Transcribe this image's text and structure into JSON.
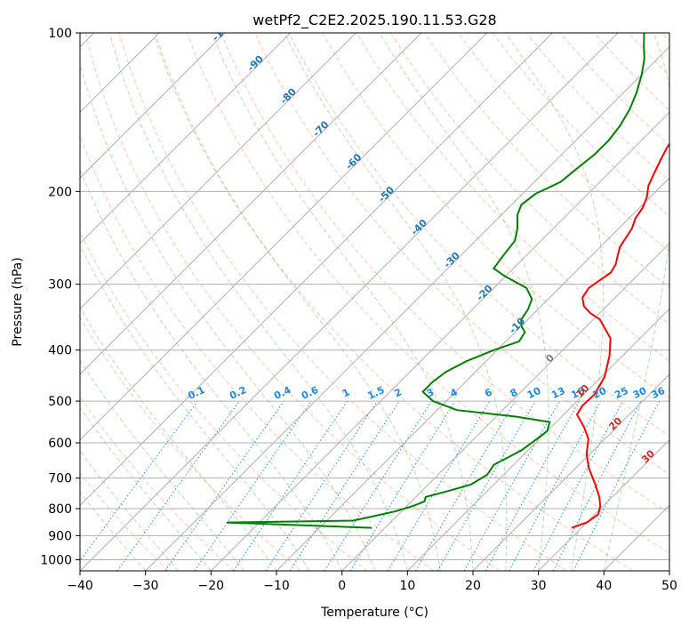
{
  "chart_data": {
    "type": "line",
    "title": "wetPf2_C2E2.2025.190.11.53.G28",
    "xlabel": "Temperature (°C)",
    "ylabel": "Pressure (hPa)",
    "xlim": [
      -40,
      50
    ],
    "ylim": [
      1050,
      100
    ],
    "y_scale": "log",
    "grid": true,
    "x_ticks": [
      "−40",
      "−30",
      "−20",
      "−10",
      "0",
      "10",
      "20",
      "30",
      "40",
      "50"
    ],
    "y_ticks": [
      {
        "p": 1000,
        "label": "1000"
      },
      {
        "p": 900,
        "label": "900"
      },
      {
        "p": 800,
        "label": "800"
      },
      {
        "p": 700,
        "label": "700"
      },
      {
        "p": 600,
        "label": "600"
      },
      {
        "p": 500,
        "label": "500"
      },
      {
        "p": 400,
        "label": "400"
      },
      {
        "p": 300,
        "label": "300"
      },
      {
        "p": 200,
        "label": "200"
      },
      {
        "p": 100,
        "label": "100"
      }
    ],
    "isotherm_labels": [
      "-100",
      "-90",
      "-80",
      "-70",
      "-60",
      "-50",
      "-40",
      "-30",
      "-20",
      "-10",
      "0",
      "10",
      "20",
      "30",
      "40"
    ],
    "mixing_ratio_labels": [
      "0.1",
      "0.2",
      "0.4",
      "0.6",
      "1",
      "1.5",
      "2",
      "3",
      "4",
      "6",
      "8",
      "10",
      "13",
      "16",
      "20",
      "25",
      "30",
      "36"
    ],
    "colors": {
      "temperature": "#ff0000",
      "dewpoint": "#008000",
      "isotherm_label_cold": "#1f77b4",
      "isotherm_label_warm": "#d62728",
      "isotherm_label_zero": "#7f7f7f",
      "mixing_ratio": "#1e88e5",
      "dry_adiabat": "#ff7f50",
      "moist_adiabat": "#2ca02c",
      "grid": "#b0b0b0"
    },
    "series": [
      {
        "name": "Temperature",
        "points": [
          [
            28.5,
            870
          ],
          [
            30.0,
            850
          ],
          [
            30.5,
            820
          ],
          [
            29.5,
            790
          ],
          [
            28.0,
            760
          ],
          [
            25.5,
            720
          ],
          [
            22.0,
            670
          ],
          [
            19.5,
            630
          ],
          [
            17.5,
            590
          ],
          [
            15.0,
            560
          ],
          [
            12.0,
            530
          ],
          [
            11.5,
            510
          ],
          [
            11.6,
            485
          ],
          [
            10.5,
            450
          ],
          [
            8.0,
            410
          ],
          [
            5.5,
            380
          ],
          [
            1.0,
            350
          ],
          [
            -1.5,
            340
          ],
          [
            -3.5,
            330
          ],
          [
            -5.0,
            318
          ],
          [
            -5.5,
            305
          ],
          [
            -5.0,
            295
          ],
          [
            -4.5,
            285
          ],
          [
            -5.0,
            275
          ],
          [
            -6.0,
            265
          ],
          [
            -7.0,
            255
          ],
          [
            -7.5,
            245
          ],
          [
            -8.0,
            235
          ],
          [
            -9.0,
            225
          ],
          [
            -9.5,
            215
          ],
          [
            -10.5,
            205
          ],
          [
            -12.0,
            195
          ],
          [
            -13.0,
            185
          ],
          [
            -14.0,
            175
          ],
          [
            -15.0,
            165
          ],
          [
            -15.5,
            155
          ],
          [
            -16.5,
            145
          ],
          [
            -18.0,
            135
          ],
          [
            -20.0,
            127
          ],
          [
            -22.0,
            120
          ],
          [
            -24.0,
            113
          ],
          [
            -26.0,
            107
          ],
          [
            -28.0,
            100
          ]
        ]
      },
      {
        "name": "Dewpoint",
        "points": [
          [
            -2.0,
            870
          ],
          [
            -25.0,
            850
          ],
          [
            -6.0,
            843
          ],
          [
            -4.0,
            830
          ],
          [
            -1.0,
            810
          ],
          [
            1.0,
            790
          ],
          [
            2.0,
            775
          ],
          [
            1.5,
            760
          ],
          [
            3.5,
            745
          ],
          [
            6.5,
            720
          ],
          [
            7.5,
            690
          ],
          [
            7.0,
            660
          ],
          [
            8.0,
            640
          ],
          [
            9.0,
            620
          ],
          [
            9.5,
            595
          ],
          [
            10.0,
            570
          ],
          [
            9.0,
            548
          ],
          [
            3.0,
            535
          ],
          [
            -7.0,
            520
          ],
          [
            -12.0,
            500
          ],
          [
            -15.0,
            480
          ],
          [
            -15.0,
            460
          ],
          [
            -14.5,
            440
          ],
          [
            -13.0,
            420
          ],
          [
            -10.5,
            400
          ],
          [
            -8.0,
            385
          ],
          [
            -8.5,
            370
          ],
          [
            -10.0,
            360
          ],
          [
            -11.0,
            350
          ],
          [
            -11.5,
            335
          ],
          [
            -12.5,
            320
          ],
          [
            -15.0,
            305
          ],
          [
            -20.0,
            290
          ],
          [
            -23.0,
            280
          ],
          [
            -23.5,
            265
          ],
          [
            -24.0,
            248
          ],
          [
            -25.5,
            235
          ],
          [
            -27.5,
            222
          ],
          [
            -28.5,
            212
          ],
          [
            -28.0,
            202
          ],
          [
            -26.0,
            192
          ],
          [
            -25.5,
            180
          ],
          [
            -25.0,
            170
          ],
          [
            -25.0,
            160
          ],
          [
            -25.5,
            150
          ],
          [
            -26.5,
            140
          ],
          [
            -28.0,
            130
          ],
          [
            -30.0,
            120
          ],
          [
            -32.0,
            112
          ],
          [
            -34.0,
            106
          ],
          [
            -36.0,
            100
          ]
        ]
      }
    ]
  }
}
